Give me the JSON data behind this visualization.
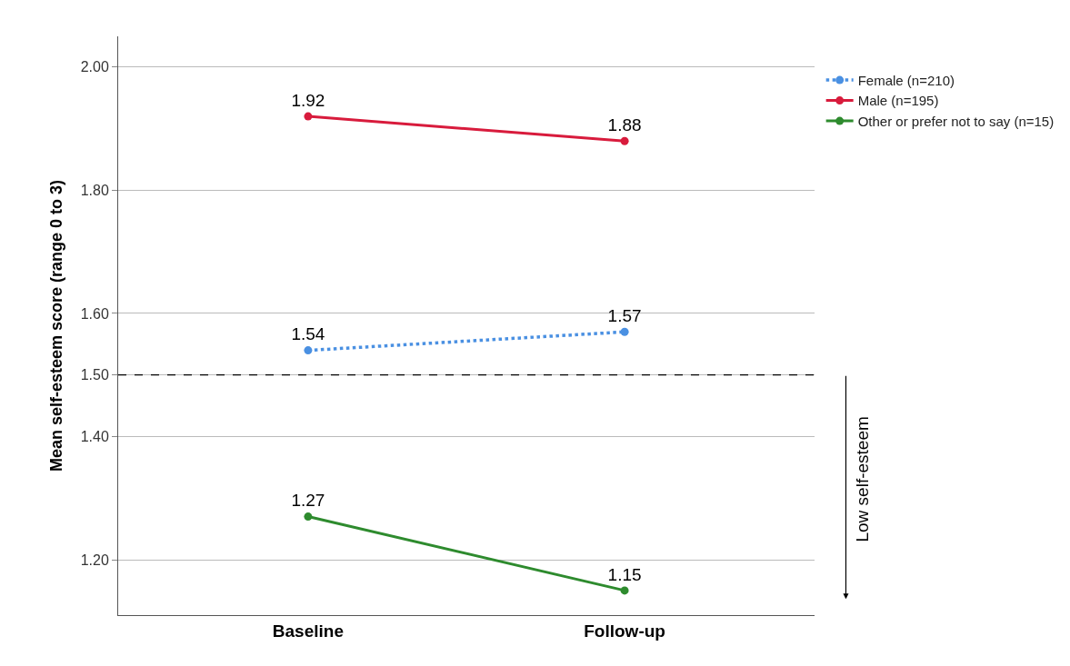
{
  "chart_data": {
    "type": "line",
    "ylabel": "Mean self-esteem score (range 0 to 3)",
    "categories": [
      "Baseline",
      "Follow-up"
    ],
    "series": [
      {
        "name": "Female (n=210)",
        "color": "#4a90e2",
        "values": [
          1.54,
          1.57
        ],
        "line_style": "dotted"
      },
      {
        "name": "Male (n=195)",
        "color": "#d81b3c",
        "values": [
          1.92,
          1.88
        ],
        "line_style": "solid"
      },
      {
        "name": "Other or prefer not to say (n=15)",
        "color": "#2e8b2e",
        "values": [
          1.27,
          1.15
        ],
        "line_style": "solid"
      }
    ],
    "ylim": [
      1.11,
      2.05
    ],
    "yticks": [
      "1.20",
      "1.40",
      "1.50",
      "1.60",
      "1.80",
      "2.00"
    ],
    "ref_lines": [
      {
        "axis": "y",
        "value": 1.5,
        "color": "#000000",
        "line_style": "dashed"
      }
    ],
    "annotations": [
      "Low self-esteem"
    ],
    "data_labels": true,
    "grid": "y",
    "legend": "top right",
    "marker": "circle"
  }
}
